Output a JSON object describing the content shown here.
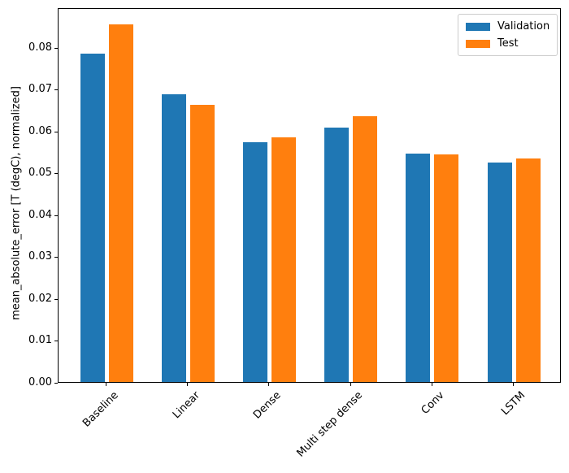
{
  "figure": {
    "background": "#ffffff",
    "spine_color": "#000000",
    "legend_border_color": "#cccccc"
  },
  "chart_data": {
    "type": "bar",
    "title": "",
    "xlabel": "",
    "ylabel": "mean_absolute_error [T (degC), normalized]",
    "categories": [
      "Baseline",
      "Linear",
      "Dense",
      "Multi step dense",
      "Conv",
      "LSTM"
    ],
    "series": [
      {
        "name": "Validation",
        "color": "#1f77b4",
        "values": [
          0.0785,
          0.0688,
          0.0573,
          0.0607,
          0.0546,
          0.0524
        ]
      },
      {
        "name": "Test",
        "color": "#ff7f0e",
        "values": [
          0.0854,
          0.0663,
          0.0584,
          0.0634,
          0.0544,
          0.0533
        ]
      }
    ],
    "ylim": [
      0,
      0.0895
    ],
    "yticks": [
      0.0,
      0.01,
      0.02,
      0.03,
      0.04,
      0.05,
      0.06,
      0.07,
      0.08
    ],
    "ytick_labels": [
      "0.00",
      "0.01",
      "0.02",
      "0.03",
      "0.04",
      "0.05",
      "0.06",
      "0.07",
      "0.08"
    ],
    "xtick_rotation": 45,
    "grid": false,
    "legend": {
      "position": "upper right",
      "entries": [
        "Validation",
        "Test"
      ]
    }
  }
}
